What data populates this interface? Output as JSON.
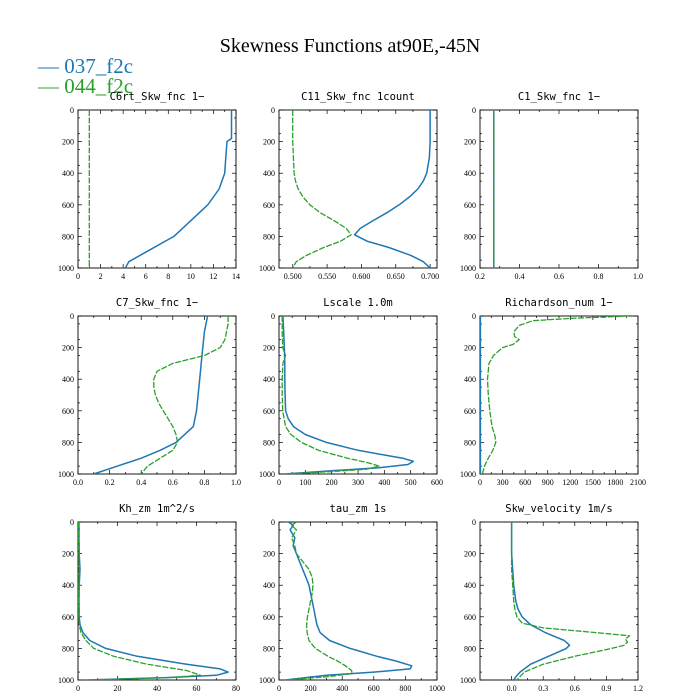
{
  "title": "Skewness Functions at90E,-45N",
  "colors": {
    "series_a": "#1f77b4",
    "series_b": "#2ca02c"
  },
  "legend": [
    {
      "label": "— 037_f2c",
      "color": "#1f77b4"
    },
    {
      "label": "— 044_f2c",
      "color": "#2ca02c"
    }
  ],
  "chart_data": [
    {
      "type": "line",
      "title": "C6rt_Skw_fnc   1−",
      "xlim": [
        0,
        14
      ],
      "ylim": [
        0,
        1000
      ],
      "xticks": [
        "0",
        "2",
        "4",
        "6",
        "8",
        "10",
        "12",
        "14"
      ],
      "yticks": [
        "0",
        "200",
        "400",
        "600",
        "800",
        "1000"
      ],
      "series": [
        {
          "name": "037_f2c",
          "y": [
            0,
            100,
            180,
            200,
            300,
            400,
            500,
            600,
            700,
            800,
            900,
            960,
            1000
          ],
          "x": [
            13.6,
            13.6,
            13.6,
            13.2,
            13.1,
            13.0,
            12.5,
            11.5,
            10.0,
            8.5,
            6.0,
            4.5,
            4.2
          ]
        },
        {
          "name": "044_f2c",
          "y": [
            0,
            1000
          ],
          "x": [
            1.0,
            1.0
          ]
        }
      ]
    },
    {
      "type": "line",
      "title": "C11_Skw_fnc   1count",
      "xlim": [
        0.48,
        0.71
      ],
      "ylim": [
        0,
        1000
      ],
      "xticks": [
        "0.500",
        "0.550",
        "0.600",
        "0.650",
        "0.700"
      ],
      "yticks": [
        "0",
        "200",
        "400",
        "600",
        "800",
        "1000"
      ],
      "series": [
        {
          "name": "037_f2c",
          "y": [
            0,
            100,
            200,
            300,
            400,
            450,
            500,
            550,
            600,
            650,
            700,
            750,
            790,
            830,
            870,
            920,
            960,
            1000
          ],
          "x": [
            0.7,
            0.7,
            0.7,
            0.699,
            0.695,
            0.69,
            0.682,
            0.67,
            0.655,
            0.637,
            0.617,
            0.598,
            0.59,
            0.608,
            0.64,
            0.672,
            0.69,
            0.7
          ]
        },
        {
          "name": "044_f2c",
          "y": [
            0,
            100,
            200,
            300,
            400,
            450,
            500,
            550,
            600,
            650,
            700,
            750,
            790,
            830,
            870,
            920,
            960,
            1000
          ],
          "x": [
            0.5,
            0.5,
            0.5,
            0.501,
            0.502,
            0.504,
            0.508,
            0.515,
            0.525,
            0.54,
            0.56,
            0.578,
            0.585,
            0.57,
            0.545,
            0.52,
            0.505,
            0.5
          ]
        }
      ]
    },
    {
      "type": "line",
      "title": "C1_Skw_fnc   1−",
      "xlim": [
        0.2,
        1.0
      ],
      "ylim": [
        0,
        1000
      ],
      "xticks": [
        "0.2",
        "0.4",
        "0.6",
        "0.8",
        "1.0"
      ],
      "yticks": [
        "0",
        "200",
        "400",
        "600",
        "800",
        "1000"
      ],
      "series": [
        {
          "name": "037_f2c",
          "y": [
            0,
            1000
          ],
          "x": [
            0.27,
            0.27
          ]
        },
        {
          "name": "044_f2c",
          "y": [
            0,
            1000
          ],
          "x": [
            0.27,
            0.27
          ]
        }
      ]
    },
    {
      "type": "line",
      "title": "C7_Skw_fnc   1−",
      "xlim": [
        0,
        1.0
      ],
      "ylim": [
        0,
        1000
      ],
      "xticks": [
        "0.0",
        "0.2",
        "0.4",
        "0.6",
        "0.8",
        "1.0"
      ],
      "yticks": [
        "0",
        "200",
        "400",
        "600",
        "800",
        "1000"
      ],
      "series": [
        {
          "name": "037_f2c",
          "y": [
            0,
            50,
            100,
            200,
            300,
            400,
            500,
            600,
            700,
            800,
            850,
            900,
            950,
            1000
          ],
          "x": [
            0.82,
            0.81,
            0.8,
            0.79,
            0.78,
            0.77,
            0.76,
            0.75,
            0.73,
            0.62,
            0.52,
            0.4,
            0.25,
            0.1
          ]
        },
        {
          "name": "044_f2c",
          "y": [
            0,
            50,
            100,
            150,
            200,
            250,
            300,
            350,
            400,
            450,
            500,
            550,
            600,
            650,
            700,
            750,
            800,
            850,
            900,
            950,
            1000
          ],
          "x": [
            0.95,
            0.95,
            0.94,
            0.93,
            0.9,
            0.8,
            0.6,
            0.5,
            0.48,
            0.48,
            0.49,
            0.51,
            0.54,
            0.57,
            0.6,
            0.62,
            0.63,
            0.6,
            0.52,
            0.44,
            0.4
          ]
        }
      ]
    },
    {
      "type": "line",
      "title": "Lscale   1.0m",
      "xlim": [
        0,
        600
      ],
      "ylim": [
        0,
        1000
      ],
      "xticks": [
        "0",
        "100",
        "200",
        "300",
        "400",
        "500",
        "600"
      ],
      "yticks": [
        "0",
        "200",
        "400",
        "600",
        "800",
        "1000"
      ],
      "series": [
        {
          "name": "037_f2c",
          "y": [
            0,
            100,
            200,
            300,
            400,
            500,
            600,
            650,
            700,
            750,
            800,
            850,
            880,
            900,
            920,
            940,
            960,
            980,
            1000
          ],
          "x": [
            15,
            18,
            20,
            22,
            22,
            23,
            25,
            35,
            55,
            100,
            180,
            300,
            400,
            470,
            510,
            490,
            380,
            200,
            20
          ]
        },
        {
          "name": "044_f2c",
          "y": [
            0,
            100,
            200,
            250,
            300,
            400,
            500,
            600,
            700,
            750,
            800,
            850,
            900,
            930,
            950,
            970,
            985,
            1000
          ],
          "x": [
            12,
            12,
            14,
            25,
            15,
            12,
            12,
            14,
            25,
            45,
            85,
            150,
            260,
            340,
            380,
            330,
            200,
            20
          ]
        }
      ]
    },
    {
      "type": "line",
      "title": "Richardson_num   1−",
      "xlim": [
        0,
        2100
      ],
      "ylim": [
        0,
        1000
      ],
      "xticks": [
        "0",
        "300",
        "600",
        "900",
        "1200",
        "1500",
        "1800",
        "2100"
      ],
      "yticks": [
        "0",
        "200",
        "400",
        "600",
        "800",
        "1000"
      ],
      "series": [
        {
          "name": "037_f2c",
          "y": [
            0,
            100,
            200,
            300,
            400,
            500,
            600,
            700,
            800,
            900,
            1000
          ],
          "x": [
            5,
            5,
            5,
            5,
            5,
            5,
            5,
            5,
            5,
            5,
            5
          ]
        },
        {
          "name": "044_f2c",
          "y": [
            0,
            15,
            30,
            60,
            100,
            130,
            150,
            180,
            200,
            250,
            300,
            400,
            500,
            600,
            700,
            760,
            800,
            850,
            900,
            950,
            1000
          ],
          "x": [
            1980,
            1200,
            700,
            520,
            450,
            460,
            520,
            440,
            300,
            180,
            120,
            100,
            110,
            130,
            160,
            200,
            210,
            170,
            110,
            60,
            30
          ]
        }
      ]
    },
    {
      "type": "line",
      "title": "Kh_zm   1m^2/s",
      "xlim": [
        0,
        80
      ],
      "ylim": [
        0,
        1000
      ],
      "xticks": [
        "0",
        "20",
        "40",
        "60",
        "80"
      ],
      "yticks": [
        "0",
        "200",
        "400",
        "600",
        "800",
        "1000"
      ],
      "series": [
        {
          "name": "037_f2c",
          "y": [
            0,
            100,
            200,
            300,
            400,
            500,
            600,
            650,
            700,
            750,
            800,
            850,
            900,
            930,
            950,
            970,
            985,
            1000
          ],
          "x": [
            0.5,
            0.5,
            0.6,
            1.0,
            0.6,
            0.5,
            0.6,
            1.0,
            2.5,
            6,
            14,
            30,
            55,
            72,
            76,
            70,
            45,
            5
          ]
        },
        {
          "name": "044_f2c",
          "y": [
            0,
            100,
            200,
            300,
            400,
            500,
            600,
            650,
            700,
            750,
            800,
            850,
            900,
            940,
            970,
            985,
            1000
          ],
          "x": [
            0.3,
            0.3,
            0.4,
            0.6,
            0.4,
            0.3,
            0.4,
            0.6,
            1.5,
            4,
            8,
            18,
            35,
            55,
            62,
            45,
            5
          ]
        }
      ]
    },
    {
      "type": "line",
      "title": "tau_zm   1s",
      "xlim": [
        0,
        1000
      ],
      "ylim": [
        0,
        1000
      ],
      "xticks": [
        "0",
        "200",
        "400",
        "600",
        "800",
        "1000"
      ],
      "yticks": [
        "0",
        "200",
        "400",
        "600",
        "800",
        "1000"
      ],
      "series": [
        {
          "name": "037_f2c",
          "y": [
            0,
            20,
            50,
            100,
            150,
            200,
            250,
            300,
            350,
            400,
            450,
            500,
            550,
            600,
            650,
            700,
            750,
            800,
            850,
            880,
            910,
            930,
            950,
            970,
            1000
          ],
          "x": [
            60,
            90,
            70,
            100,
            90,
            110,
            130,
            150,
            170,
            190,
            200,
            210,
            220,
            230,
            240,
            260,
            320,
            450,
            620,
            740,
            840,
            830,
            600,
            300,
            40
          ]
        },
        {
          "name": "044_f2c",
          "y": [
            0,
            20,
            50,
            100,
            150,
            200,
            250,
            300,
            350,
            400,
            450,
            500,
            550,
            600,
            650,
            700,
            750,
            800,
            850,
            880,
            910,
            940,
            960,
            980,
            1000
          ],
          "x": [
            110,
            80,
            110,
            80,
            100,
            110,
            150,
            190,
            210,
            215,
            210,
            200,
            190,
            180,
            175,
            178,
            190,
            230,
            310,
            370,
            420,
            460,
            460,
            300,
            40
          ]
        }
      ]
    },
    {
      "type": "line",
      "title": "Skw_velocity   1m/s",
      "xlim": [
        -0.3,
        1.2
      ],
      "ylim": [
        0,
        1000
      ],
      "xticks": [
        "0.0",
        "0.3",
        "0.6",
        "0.9",
        "1.2"
      ],
      "yticks": [
        "0",
        "200",
        "400",
        "600",
        "800",
        "1000"
      ],
      "series": [
        {
          "name": "037_f2c",
          "y": [
            0,
            100,
            200,
            300,
            400,
            500,
            550,
            600,
            650,
            700,
            750,
            780,
            800,
            850,
            900,
            950,
            980,
            1000
          ],
          "x": [
            0,
            0,
            0,
            0.01,
            0.02,
            0.04,
            0.06,
            0.1,
            0.18,
            0.32,
            0.5,
            0.55,
            0.52,
            0.35,
            0.18,
            0.08,
            0.04,
            0.02
          ]
        },
        {
          "name": "044_f2c",
          "y": [
            0,
            100,
            200,
            300,
            400,
            500,
            550,
            600,
            640,
            670,
            700,
            720,
            740,
            760,
            780,
            800,
            850,
            900,
            950,
            1000
          ],
          "x": [
            0,
            0,
            0,
            0,
            0.01,
            0.02,
            0.03,
            0.05,
            0.1,
            0.3,
            0.8,
            1.12,
            1.08,
            1.1,
            1.07,
            0.95,
            0.6,
            0.3,
            0.12,
            0.05
          ]
        }
      ]
    }
  ]
}
